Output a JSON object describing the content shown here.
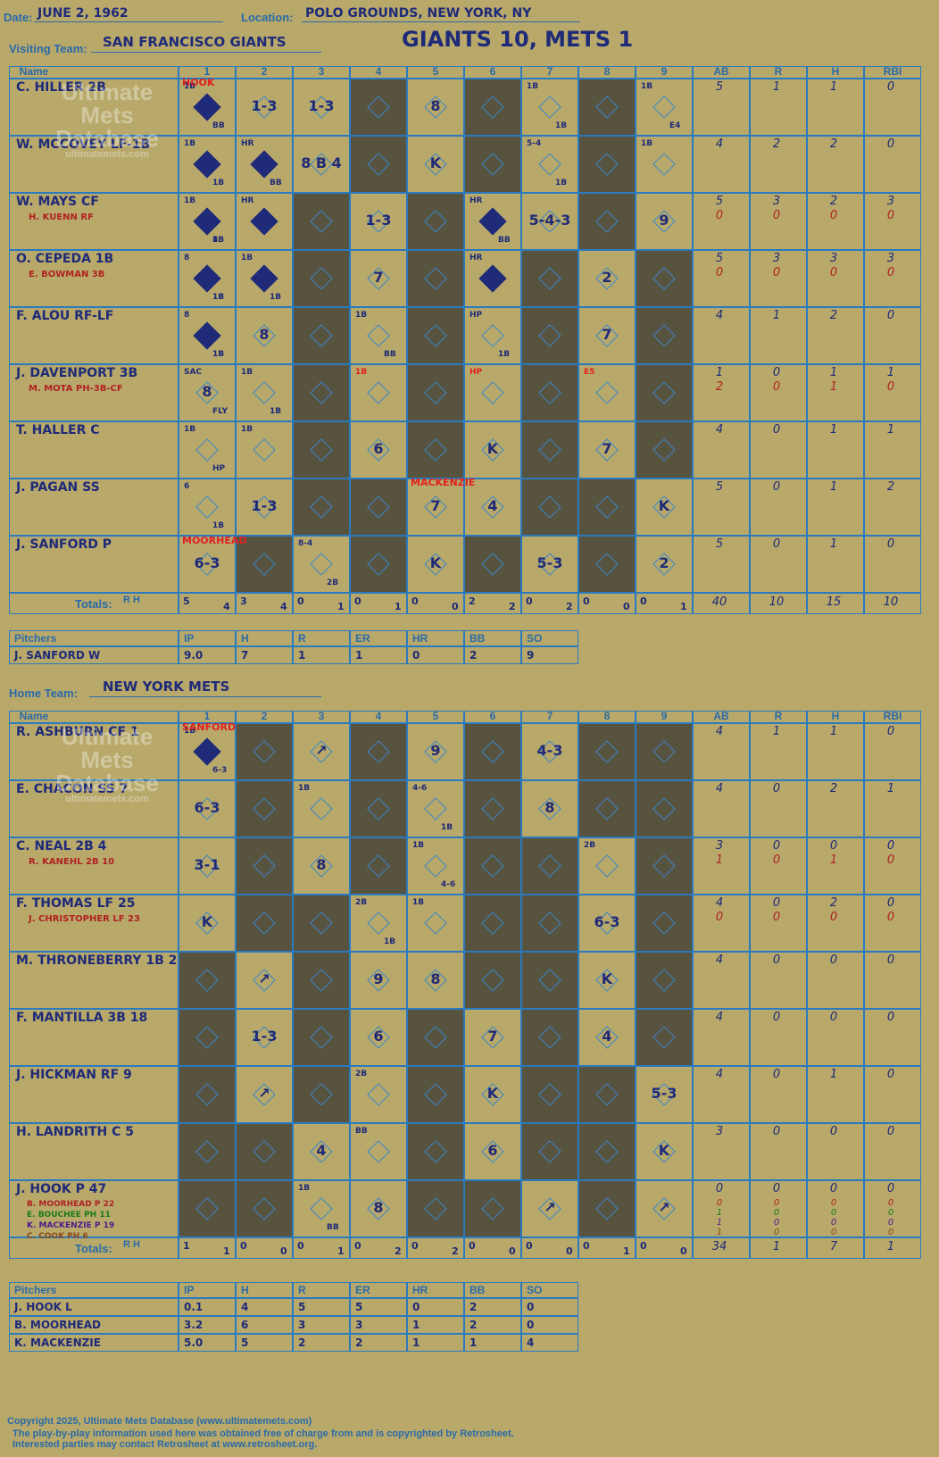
{
  "header": {
    "date_label": "Date:",
    "date": "JUNE 2, 1962",
    "location_label": "Location:",
    "location": "POLO GROUNDS, NEW YORK, NY",
    "visiting_label": "Visiting Team:",
    "visiting_team": "SAN FRANCISCO GIANTS",
    "result": "GIANTS 10, METS 1",
    "home_label": "Home Team:",
    "home_team": "NEW YORK METS"
  },
  "watermark": {
    "line1": "Ultimate",
    "line2": "Mets",
    "line3": "Database",
    "url": "ultimatemets.com"
  },
  "columns": [
    "Name",
    "1",
    "2",
    "3",
    "4",
    "5",
    "6",
    "7",
    "8",
    "9",
    "AB",
    "R",
    "H",
    "RBI"
  ],
  "visitors": {
    "rows": [
      {
        "name": "C. HILLER 2B",
        "sub": "",
        "stats": [
          "5",
          "1",
          "1",
          "0"
        ],
        "subs": []
      },
      {
        "name": "W. MCCOVEY LF-1B",
        "sub": "",
        "stats": [
          "4",
          "2",
          "2",
          "0"
        ],
        "subs": []
      },
      {
        "name": "W. MAYS CF",
        "sub": "H. KUENN RF",
        "stats": [
          "5",
          "3",
          "2",
          "3"
        ],
        "subs": [
          "0",
          "0",
          "0",
          "0"
        ]
      },
      {
        "name": "O. CEPEDA 1B",
        "sub": "E. BOWMAN 3B",
        "stats": [
          "5",
          "3",
          "3",
          "3"
        ],
        "subs": [
          "0",
          "0",
          "0",
          "0"
        ]
      },
      {
        "name": "F. ALOU RF-LF",
        "sub": "",
        "stats": [
          "4",
          "1",
          "2",
          "0"
        ],
        "subs": []
      },
      {
        "name": "J. DAVENPORT 3B",
        "sub": "M. MOTA PH-3B-CF",
        "stats": [
          "1",
          "0",
          "1",
          "1"
        ],
        "subs": [
          "2",
          "0",
          "1",
          "0"
        ]
      },
      {
        "name": "T. HALLER C",
        "sub": "",
        "stats": [
          "4",
          "0",
          "1",
          "1"
        ],
        "subs": []
      },
      {
        "name": "J. PAGAN SS",
        "sub": "",
        "stats": [
          "5",
          "0",
          "1",
          "2"
        ],
        "subs": []
      },
      {
        "name": "J. SANFORD P",
        "sub": "",
        "stats": [
          "5",
          "0",
          "1",
          "0"
        ],
        "subs": []
      }
    ],
    "totals_label": "Totals:",
    "rh": "R H",
    "totals_innings": [
      [
        "5",
        "4"
      ],
      [
        "3",
        "4"
      ],
      [
        "0",
        "1"
      ],
      [
        "0",
        "1"
      ],
      [
        "0",
        "0"
      ],
      [
        "2",
        "2"
      ],
      [
        "0",
        "2"
      ],
      [
        "0",
        "0"
      ],
      [
        "0",
        "1"
      ]
    ],
    "totals_stats": [
      "40",
      "10",
      "15",
      "10"
    ],
    "pitch_note_1": "HOOK",
    "pitch_note_2": "MOORHEAD",
    "pitch_note_3": "MACKENZIE"
  },
  "visitor_pitchers": {
    "headers": [
      "Pitchers",
      "IP",
      "H",
      "R",
      "ER",
      "HR",
      "BB",
      "SO"
    ],
    "rows": [
      [
        "J. SANFORD  W",
        "9.0",
        "7",
        "1",
        "1",
        "0",
        "2",
        "9"
      ]
    ]
  },
  "home": {
    "rows": [
      {
        "name": "R. ASHBURN CF  1",
        "sub": "",
        "stats": [
          "4",
          "1",
          "1",
          "0"
        ],
        "subs": []
      },
      {
        "name": "E. CHACON SS  7",
        "sub": "",
        "stats": [
          "4",
          "0",
          "2",
          "1"
        ],
        "subs": []
      },
      {
        "name": "C. NEAL 2B  4",
        "sub": "R. KANEHL 2B  10",
        "stats": [
          "3",
          "0",
          "0",
          "0"
        ],
        "subs": [
          "1",
          "0",
          "1",
          "0"
        ]
      },
      {
        "name": "F. THOMAS LF  25",
        "sub": "J. CHRISTOPHER LF  23",
        "stats": [
          "4",
          "0",
          "2",
          "0"
        ],
        "subs": [
          "0",
          "0",
          "0",
          "0"
        ]
      },
      {
        "name": "M. THRONEBERRY 1B  2",
        "sub": "",
        "stats": [
          "4",
          "0",
          "0",
          "0"
        ],
        "subs": []
      },
      {
        "name": "F. MANTILLA 3B  18",
        "sub": "",
        "stats": [
          "4",
          "0",
          "0",
          "0"
        ],
        "subs": []
      },
      {
        "name": "J. HICKMAN RF  9",
        "sub": "",
        "stats": [
          "4",
          "0",
          "1",
          "0"
        ],
        "subs": []
      },
      {
        "name": "H. LANDRITH C  5",
        "sub": "",
        "stats": [
          "3",
          "0",
          "0",
          "0"
        ],
        "subs": []
      },
      {
        "name": "J. HOOK P  47",
        "sub": "",
        "stats": [
          "0",
          "0",
          "0",
          "0"
        ],
        "subs": []
      }
    ],
    "hook_subs": [
      "B. MOORHEAD P  22",
      "E. BOUCHEE PH  11",
      "K. MACKENZIE P  19",
      "C. COOK PH  6"
    ],
    "hook_sub_stats": [
      [
        "0",
        "0",
        "0",
        "0"
      ],
      [
        "1",
        "0",
        "0",
        "0"
      ],
      [
        "1",
        "0",
        "0",
        "0"
      ],
      [
        "1",
        "0",
        "0",
        "0"
      ]
    ],
    "totals_label": "Totals:",
    "rh": "R H",
    "totals_innings": [
      [
        "1",
        "1"
      ],
      [
        "0",
        "0"
      ],
      [
        "0",
        "1"
      ],
      [
        "0",
        "2"
      ],
      [
        "0",
        "2"
      ],
      [
        "0",
        "0"
      ],
      [
        "0",
        "0"
      ],
      [
        "0",
        "1"
      ],
      [
        "0",
        "0"
      ]
    ],
    "totals_stats": [
      "34",
      "1",
      "7",
      "1"
    ],
    "pitch_note": "SANFORD"
  },
  "home_pitchers": {
    "headers": [
      "Pitchers",
      "IP",
      "H",
      "R",
      "ER",
      "HR",
      "BB",
      "SO"
    ],
    "rows": [
      [
        "J. HOOK  L",
        "0.1",
        "4",
        "5",
        "5",
        "0",
        "2",
        "0"
      ],
      [
        "B. MOORHEAD",
        "3.2",
        "6",
        "3",
        "3",
        "1",
        "2",
        "0"
      ],
      [
        "K. MACKENZIE",
        "5.0",
        "5",
        "2",
        "2",
        "1",
        "1",
        "4"
      ]
    ]
  },
  "visitor_plays": [
    [
      {
        "t": "",
        "f": 1,
        "n": "1B BB"
      },
      {
        "t": "1-3"
      },
      {
        "t": "1-3"
      },
      {
        "d": 1
      },
      {
        "t": "8"
      },
      {
        "d": 1
      },
      {
        "t": "",
        "n": "1B 1B"
      },
      {
        "d": 1
      },
      {
        "t": "",
        "n": "1B E4"
      }
    ],
    [
      {
        "t": "",
        "f": 1,
        "n": "1B 1B"
      },
      {
        "t": "",
        "f": 1,
        "n": "HR BB"
      },
      {
        "t": "8 B 4"
      },
      {
        "d": 1
      },
      {
        "t": "K"
      },
      {
        "d": 1
      },
      {
        "t": "",
        "n": "5-4 1B"
      },
      {
        "d": 1
      },
      {
        "t": "",
        "n": "1B"
      }
    ],
    [
      {
        "t": "",
        "f": 1,
        "n": "1B 8 1B"
      },
      {
        "t": "",
        "f": 1,
        "n": "HR"
      },
      {
        "d": 1
      },
      {
        "t": "1-3"
      },
      {
        "d": 1
      },
      {
        "t": "",
        "f": 1,
        "n": "HR BB"
      },
      {
        "t": "5-4-3"
      },
      {
        "d": 1
      },
      {
        "t": "9"
      }
    ],
    [
      {
        "t": "",
        "f": 1,
        "n": "8 1B 1B"
      },
      {
        "t": "",
        "f": 1,
        "n": "1B 1B"
      },
      {
        "d": 1
      },
      {
        "t": "7"
      },
      {
        "d": 1
      },
      {
        "t": "",
        "f": 1,
        "n": "HR"
      },
      {
        "d": 1
      },
      {
        "t": "2"
      },
      {
        "d": 1
      }
    ],
    [
      {
        "t": "",
        "f": 1,
        "n": "8 1B 1B"
      },
      {
        "t": "8"
      },
      {
        "d": 1
      },
      {
        "t": "",
        "n": "1B BB"
      },
      {
        "d": 1
      },
      {
        "t": "",
        "n": "HP 1B"
      },
      {
        "d": 1
      },
      {
        "t": "7"
      },
      {
        "d": 1
      }
    ],
    [
      {
        "t": "8",
        "n": "SAC FLY"
      },
      {
        "t": "",
        "n": "1B 1B"
      },
      {
        "d": 1
      },
      {
        "t": "",
        "n": "1B"
      },
      {
        "d": 1
      },
      {
        "t": "",
        "n": "HP"
      },
      {
        "d": 1
      },
      {
        "t": "",
        "n": "E5"
      },
      {
        "d": 1
      }
    ],
    [
      {
        "t": "",
        "n": "1B HP"
      },
      {
        "t": "",
        "n": "1B"
      },
      {
        "d": 1
      },
      {
        "t": "6"
      },
      {
        "d": 1
      },
      {
        "t": "K"
      },
      {
        "d": 1
      },
      {
        "t": "7"
      },
      {
        "d": 1
      }
    ],
    [
      {
        "t": "",
        "n": "6 1B"
      },
      {
        "t": "1-3"
      },
      {
        "d": 1
      },
      {
        "d": 1
      },
      {
        "t": "7"
      },
      {
        "t": "4"
      },
      {
        "d": 1
      },
      {
        "d": 1
      },
      {
        "t": "K"
      }
    ],
    [
      {
        "t": "6-3"
      },
      {
        "d": 1
      },
      {
        "t": "",
        "n": "8-4 2B"
      },
      {
        "d": 1
      },
      {
        "t": "K"
      },
      {
        "d": 1
      },
      {
        "t": "5-3"
      },
      {
        "d": 1
      },
      {
        "t": "2"
      }
    ]
  ],
  "home_plays": [
    [
      {
        "t": "",
        "f": 1,
        "n": "1B 6-3"
      },
      {
        "d": 1
      },
      {
        "t": "↗"
      },
      {
        "d": 1
      },
      {
        "t": "9"
      },
      {
        "d": 1
      },
      {
        "t": "4-3"
      },
      {
        "d": 1
      },
      {
        "d": 1
      }
    ],
    [
      {
        "t": "6-3"
      },
      {
        "d": 1
      },
      {
        "t": "",
        "n": "1B"
      },
      {
        "d": 1
      },
      {
        "t": "",
        "n": "4-6 1B"
      },
      {
        "d": 1
      },
      {
        "t": "8"
      },
      {
        "d": 1
      },
      {
        "d": 1
      }
    ],
    [
      {
        "t": "3-1"
      },
      {
        "d": 1
      },
      {
        "t": "8"
      },
      {
        "d": 1
      },
      {
        "t": "",
        "n": "1B 4-6"
      },
      {
        "d": 1
      },
      {
        "d": 1
      },
      {
        "t": "",
        "n": "2B"
      },
      {
        "d": 1
      }
    ],
    [
      {
        "t": "K"
      },
      {
        "d": 1
      },
      {
        "d": 1
      },
      {
        "t": "",
        "n": "2B 1B"
      },
      {
        "t": "",
        "n": "1B"
      },
      {
        "d": 1
      },
      {
        "d": 1
      },
      {
        "t": "6-3"
      },
      {
        "d": 1
      }
    ],
    [
      {
        "d": 1
      },
      {
        "t": "↗"
      },
      {
        "d": 1
      },
      {
        "t": "9"
      },
      {
        "t": "8"
      },
      {
        "d": 1
      },
      {
        "d": 1
      },
      {
        "t": "K"
      },
      {
        "d": 1
      }
    ],
    [
      {
        "d": 1
      },
      {
        "t": "1-3"
      },
      {
        "d": 1
      },
      {
        "t": "6"
      },
      {
        "d": 1
      },
      {
        "t": "7"
      },
      {
        "d": 1
      },
      {
        "t": "4"
      },
      {
        "d": 1
      }
    ],
    [
      {
        "d": 1
      },
      {
        "t": "↗"
      },
      {
        "d": 1
      },
      {
        "t": "",
        "n": "2B"
      },
      {
        "d": 1
      },
      {
        "t": "K"
      },
      {
        "d": 1
      },
      {
        "d": 1
      },
      {
        "t": "5-3"
      }
    ],
    [
      {
        "d": 1
      },
      {
        "d": 1
      },
      {
        "t": "4"
      },
      {
        "t": "",
        "n": "BB"
      },
      {
        "d": 1
      },
      {
        "t": "6"
      },
      {
        "d": 1
      },
      {
        "d": 1
      },
      {
        "t": "K"
      }
    ],
    [
      {
        "d": 1
      },
      {
        "d": 1
      },
      {
        "t": "",
        "n": "1B BB"
      },
      {
        "t": "8"
      },
      {
        "d": 1
      },
      {
        "d": 1
      },
      {
        "t": "↗"
      },
      {
        "d": 1
      },
      {
        "t": "↗"
      }
    ]
  ],
  "footer": {
    "copyright": "Copyright 2025, Ultimate Mets Database (www.ultimatemets.com)",
    "line2": "The play-by-play information used here was obtained free of charge from and is copyrighted by Retrosheet.",
    "line3": "Interested parties may contact Retrosheet at www.retrosheet.org."
  }
}
